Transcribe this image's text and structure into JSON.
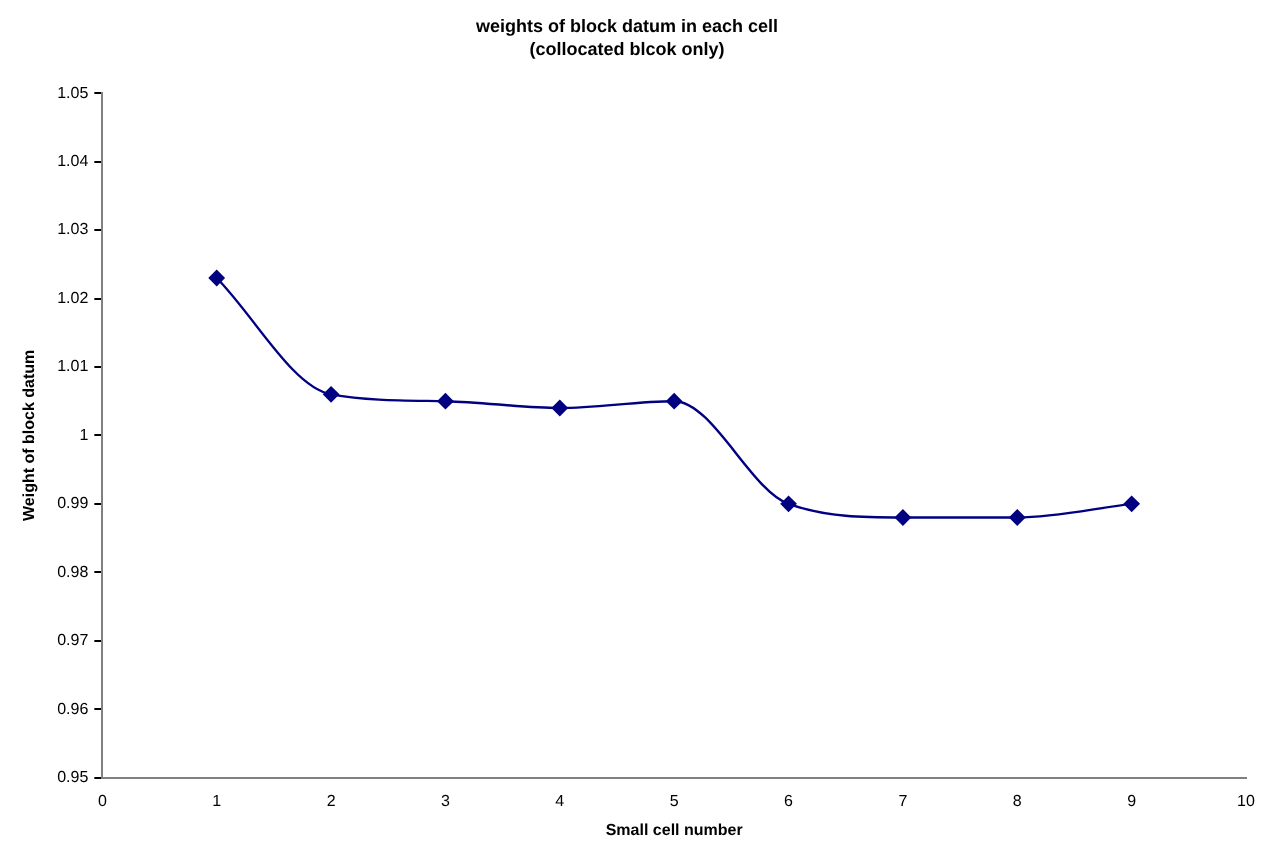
{
  "chart_data": {
    "type": "line",
    "title": "weights of block datum in each cell",
    "subtitle": "(collocated blcok only)",
    "xlabel": "Small cell number",
    "ylabel": "Weight of block datum",
    "x": [
      1,
      2,
      3,
      4,
      5,
      6,
      7,
      8,
      9
    ],
    "series": [
      {
        "color": "#000080",
        "values": [
          1.023,
          1.006,
          1.005,
          1.004,
          1.005,
          0.99,
          0.988,
          0.988,
          0.99
        ]
      }
    ],
    "xlim": [
      0,
      10
    ],
    "xticks": [
      0,
      1,
      2,
      3,
      4,
      5,
      6,
      7,
      8,
      9,
      10
    ],
    "ylim": [
      0.95,
      1.05
    ],
    "yticks": [
      {
        "value": 0.95,
        "label": "0.95"
      },
      {
        "value": 0.96,
        "label": "0.96"
      },
      {
        "value": 0.97,
        "label": "0.97"
      },
      {
        "value": 0.98,
        "label": "0.98"
      },
      {
        "value": 0.99,
        "label": "0.99"
      },
      1,
      {
        "value": 1.01,
        "label": "1.01"
      },
      {
        "value": 1.02,
        "label": "1.02"
      },
      {
        "value": 1.03,
        "label": "1.03"
      },
      {
        "value": 1.04,
        "label": "1.04"
      },
      {
        "value": 1.05,
        "label": "1.05"
      }
    ],
    "grid": false,
    "legend": false,
    "marker": "diamond",
    "line_style": "solid"
  }
}
